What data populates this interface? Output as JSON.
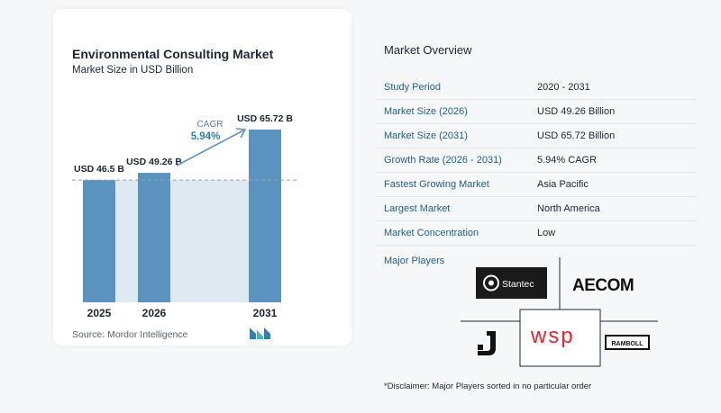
{
  "chart": {
    "title": "Environmental Consulting Market",
    "subtitle": "Market Size in USD Billion",
    "source": "Source:  Mordor Intelligence",
    "cagr_label": "CAGR",
    "cagr_value": "5.94%"
  },
  "chart_data": {
    "type": "bar",
    "title": "Environmental Consulting Market",
    "subtitle": "Market Size in USD Billion",
    "categories": [
      "2025",
      "2026",
      "2031"
    ],
    "values": [
      46.5,
      49.26,
      65.72
    ],
    "value_labels": [
      "USD 46.5 B",
      "USD 49.26 B",
      "USD 65.72 B"
    ],
    "cagr": "5.94%",
    "grid": false,
    "colors": {
      "bar": "#5b93bf",
      "band": "#dfe9f2",
      "dash": "#8aa3b8",
      "arrow": "#5b93bf"
    }
  },
  "overview": {
    "title": "Market Overview",
    "rows": [
      {
        "key": "Study Period",
        "value": "2020 - 2031"
      },
      {
        "key": "Market Size (2026)",
        "value": "USD 49.26 Billion"
      },
      {
        "key": "Market Size (2031)",
        "value": "USD 65.72 Billion"
      },
      {
        "key": "Growth Rate (2026 - 2031)",
        "value": "5.94% CAGR"
      },
      {
        "key": "Fastest Growing Market",
        "value": "Asia Pacific"
      },
      {
        "key": "Largest Market",
        "value": "North America"
      },
      {
        "key": "Market Concentration",
        "value": "Low"
      }
    ],
    "major_players_title": "Major Players",
    "players": [
      "Stantec",
      "AECOM",
      "J",
      "wsp",
      "RAMBOLL"
    ],
    "disclaimer": "*Disclaimer: Major Players sorted in no particular order"
  }
}
